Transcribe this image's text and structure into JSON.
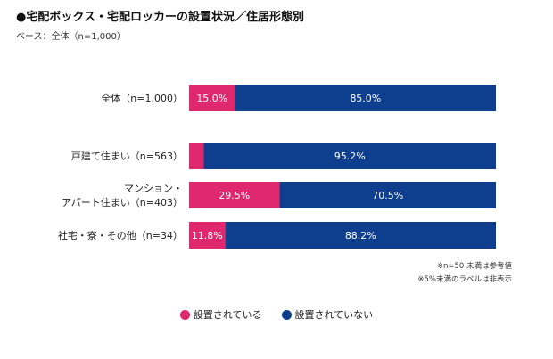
{
  "chart_data": {
    "type": "bar",
    "orientation": "horizontal",
    "stacked": true,
    "percent": true,
    "title": "●宅配ボックス・宅配ロッカーの設置状況／住居形態別",
    "subtitle": "ベース：全体（n=1,000）",
    "categories": [
      [
        "全体（n=1,000）"
      ],
      [
        "戸建て住まい（n=563）"
      ],
      [
        "マンション・",
        "アパート住まい（n=403）"
      ],
      [
        "社宅・寮・その他（n=34）"
      ]
    ],
    "series": [
      {
        "name": "設置されている",
        "color": "#e0286f",
        "values": [
          15.0,
          4.8,
          29.5,
          11.8
        ],
        "labels": [
          "15.0%",
          "",
          "29.5%",
          "11.8%"
        ]
      },
      {
        "name": "設置されていない",
        "color": "#0e3f8f",
        "values": [
          85.0,
          95.2,
          70.5,
          88.2
        ],
        "labels": [
          "85.0%",
          "95.2%",
          "70.5%",
          "88.2%"
        ]
      }
    ],
    "xlim": [
      0,
      100
    ],
    "grid": false,
    "legend_position": "bottom",
    "notes": [
      "※n=50 未満は参考値",
      "※5%未満のラベルは非表示"
    ]
  }
}
